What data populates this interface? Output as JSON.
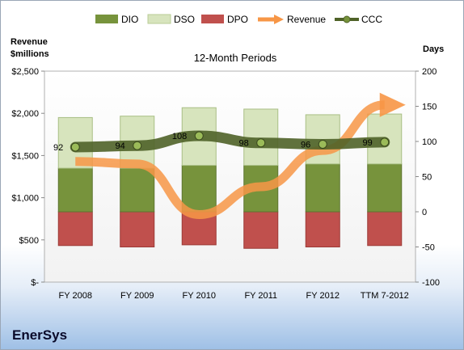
{
  "company": "EnerSys",
  "chart_data": {
    "type": "bar",
    "title": "12-Month Periods",
    "ylabel_left": [
      "Revenue",
      "$millions"
    ],
    "ylabel_right": "Days",
    "categories": [
      "FY 2008",
      "FY 2009",
      "FY 2010",
      "FY 2011",
      "FY 2012",
      "TTM 7-2012"
    ],
    "left_axis": {
      "min": 0,
      "max": 2500,
      "ticks": [
        "$-",
        "$500",
        "$1,000",
        "$1,500",
        "$2,000",
        "$2,500"
      ],
      "tick_values": [
        0,
        500,
        1000,
        1500,
        2000,
        2500
      ]
    },
    "right_axis": {
      "min": -100,
      "max": 200,
      "ticks": [
        "-100",
        "-50",
        "0",
        "50",
        "100",
        "150",
        "200"
      ],
      "tick_values": [
        -100,
        -50,
        0,
        50,
        100,
        150,
        200
      ]
    },
    "series": [
      {
        "name": "DIO",
        "kind": "stacked-bar",
        "axis": "right",
        "color": "#77933c",
        "values": [
          62,
          62,
          66,
          66,
          68,
          68
        ]
      },
      {
        "name": "DSO",
        "kind": "stacked-bar",
        "axis": "right",
        "color": "#d7e4bd",
        "values": [
          72,
          74,
          82,
          80,
          70,
          71
        ]
      },
      {
        "name": "DPO",
        "kind": "negative-bar",
        "axis": "right",
        "color": "#c0504d",
        "values": [
          -48,
          -50,
          -47,
          -52,
          -50,
          -48
        ]
      },
      {
        "name": "Revenue",
        "kind": "arrow-line",
        "axis": "left",
        "color": "#f79646",
        "values": [
          1430,
          1400,
          800,
          1130,
          1560,
          2100
        ]
      },
      {
        "name": "CCC",
        "kind": "line",
        "axis": "right",
        "color": "#4f6228",
        "values": [
          92,
          94,
          108,
          98,
          96,
          99
        ],
        "labels": [
          "92",
          "94",
          "108",
          "98",
          "96",
          "99"
        ]
      }
    ],
    "legend": {
      "position": "top",
      "items": [
        "DIO",
        "DSO",
        "DPO",
        "Revenue",
        "CCC"
      ]
    },
    "grid": false
  }
}
